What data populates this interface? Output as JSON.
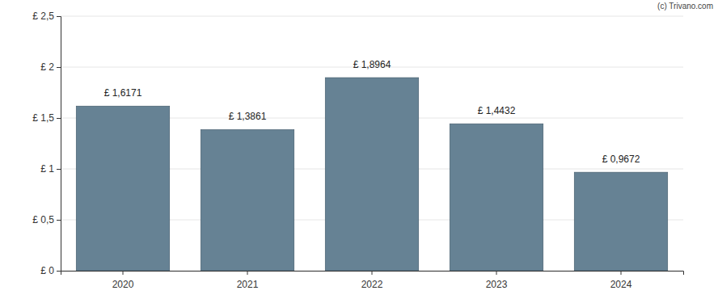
{
  "chart_data": {
    "type": "bar",
    "categories": [
      "2020",
      "2021",
      "2022",
      "2023",
      "2024"
    ],
    "values": [
      1.6171,
      1.3861,
      1.8964,
      1.4432,
      0.9672
    ],
    "value_labels": [
      "£ 1,6171",
      "£ 1,3861",
      "£ 1,8964",
      "£ 1,4432",
      "£ 0,9672"
    ],
    "color": "#668294",
    "ylim": [
      0,
      2.5
    ],
    "yticks": [
      {
        "value": 0,
        "label": "£ 0"
      },
      {
        "value": 0.5,
        "label": "£ 0,5"
      },
      {
        "value": 1,
        "label": "£ 1"
      },
      {
        "value": 1.5,
        "label": "£ 1,5"
      },
      {
        "value": 2,
        "label": "£ 2"
      },
      {
        "value": 2.5,
        "label": "£ 2,5"
      }
    ],
    "grid": true,
    "data_labels": true,
    "annotations": [
      "(c) Trivano.com"
    ]
  }
}
